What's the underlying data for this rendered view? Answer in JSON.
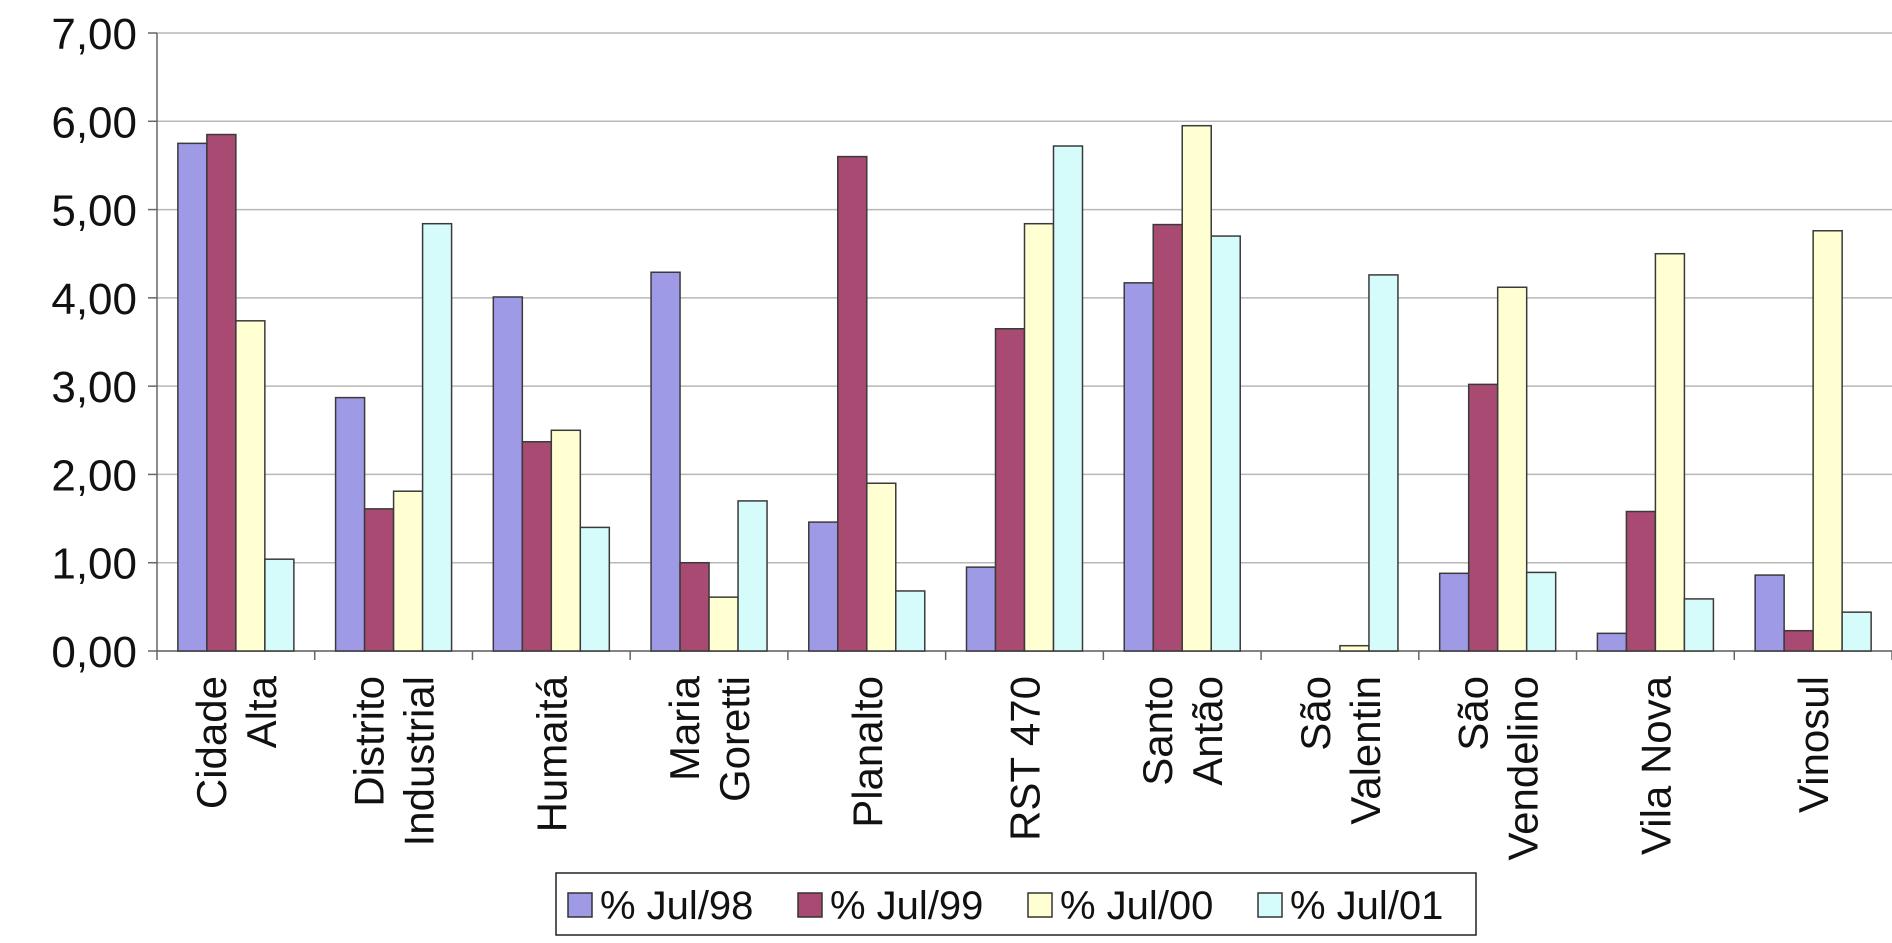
{
  "chart_data": {
    "type": "bar",
    "title": "",
    "xlabel": "",
    "ylabel": "",
    "ylim": [
      0,
      7
    ],
    "ytick_values": [
      0,
      1,
      2,
      3,
      4,
      5,
      6,
      7
    ],
    "ytick_labels": [
      "0,00",
      "1,00",
      "2,00",
      "3,00",
      "4,00",
      "5,00",
      "6,00",
      "7,00"
    ],
    "grid": true,
    "legend_position": "bottom-center",
    "categories": [
      [
        "Cidade",
        "Alta"
      ],
      [
        "Distrito",
        "Industrial"
      ],
      [
        "Humaitá"
      ],
      [
        "Maria",
        "Goretti"
      ],
      [
        "Planalto"
      ],
      [
        "RST 470"
      ],
      [
        "Santo",
        "Antão"
      ],
      [
        "São",
        "Valentin"
      ],
      [
        "São",
        "Vendelino"
      ],
      [
        "Vila Nova"
      ],
      [
        "Vinosul"
      ]
    ],
    "series": [
      {
        "name": "% Jul/98",
        "color": "#9F9AE6",
        "values": [
          5.75,
          2.87,
          4.01,
          4.29,
          1.46,
          0.95,
          4.17,
          0.0,
          0.88,
          0.2,
          0.86
        ]
      },
      {
        "name": "% Jul/99",
        "color": "#A84A72",
        "values": [
          5.85,
          1.61,
          2.37,
          1.0,
          5.6,
          3.65,
          4.83,
          0.0,
          3.02,
          1.58,
          0.23
        ]
      },
      {
        "name": "% Jul/00",
        "color": "#FFFFD2",
        "values": [
          3.74,
          1.81,
          2.5,
          0.61,
          1.9,
          4.84,
          5.95,
          0.06,
          4.12,
          4.5,
          4.76
        ]
      },
      {
        "name": "% Jul/01",
        "color": "#D6FBFB",
        "values": [
          1.04,
          4.84,
          1.4,
          1.7,
          0.68,
          5.72,
          4.7,
          4.26,
          0.89,
          0.59,
          0.44
        ]
      }
    ]
  }
}
